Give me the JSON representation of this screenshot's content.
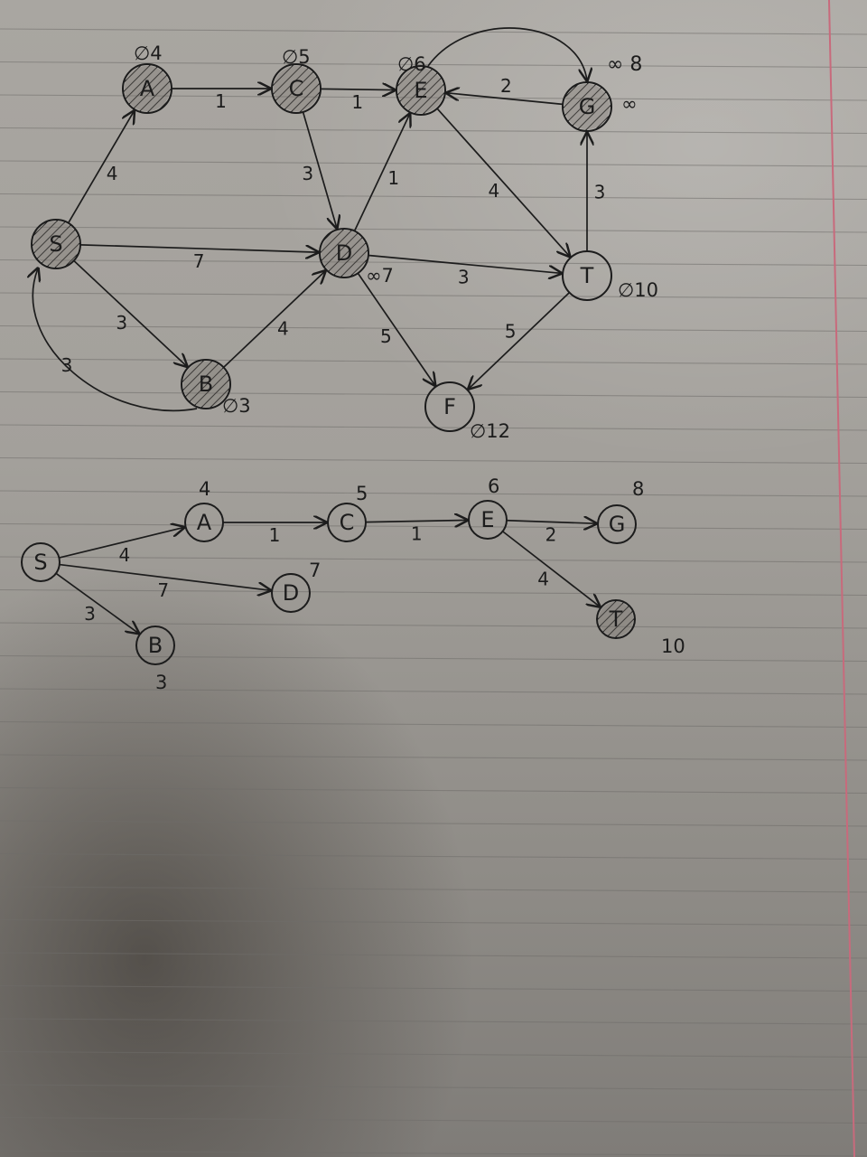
{
  "graph_top": {
    "nodes": [
      {
        "id": "S",
        "label": "S",
        "crossed": true,
        "annotation": ""
      },
      {
        "id": "A",
        "label": "A",
        "crossed": true,
        "annotation": "∅4"
      },
      {
        "id": "C",
        "label": "C",
        "crossed": true,
        "annotation": "∅5"
      },
      {
        "id": "E",
        "label": "E",
        "crossed": true,
        "annotation": "∅6"
      },
      {
        "id": "G",
        "label": "G",
        "crossed": true,
        "annotation": "∞"
      },
      {
        "id": "D",
        "label": "D",
        "crossed": true,
        "annotation": "∞7"
      },
      {
        "id": "T",
        "label": "T",
        "crossed": false,
        "annotation": "∅10"
      },
      {
        "id": "B",
        "label": "B",
        "crossed": true,
        "annotation": "∅3"
      },
      {
        "id": "F",
        "label": "F",
        "crossed": false,
        "annotation": "∅12"
      }
    ],
    "edges": [
      {
        "from": "S",
        "to": "A",
        "weight": "4"
      },
      {
        "from": "A",
        "to": "C",
        "weight": "1"
      },
      {
        "from": "C",
        "to": "E",
        "weight": "1"
      },
      {
        "from": "G",
        "to": "E",
        "weight": "2"
      },
      {
        "from": "E",
        "to": "G",
        "weight": ""
      },
      {
        "from": "C",
        "to": "D",
        "weight": "3"
      },
      {
        "from": "D",
        "to": "E",
        "weight": "1"
      },
      {
        "from": "E",
        "to": "T",
        "weight": "4"
      },
      {
        "from": "T",
        "to": "G",
        "weight": "3"
      },
      {
        "from": "S",
        "to": "D",
        "weight": "7"
      },
      {
        "from": "D",
        "to": "T",
        "weight": "3"
      },
      {
        "from": "S",
        "to": "B",
        "weight": "3"
      },
      {
        "from": "B",
        "to": "S",
        "weight": "3"
      },
      {
        "from": "B",
        "to": "D",
        "weight": "4"
      },
      {
        "from": "D",
        "to": "F",
        "weight": "5"
      },
      {
        "from": "T",
        "to": "F",
        "weight": "5"
      }
    ],
    "extra_marks": {
      "g_crossed_values": "∞ 8"
    }
  },
  "tree_bottom": {
    "nodes": [
      {
        "id": "S",
        "label": "S",
        "crossed": false,
        "value": ""
      },
      {
        "id": "A",
        "label": "A",
        "crossed": false,
        "value": "4"
      },
      {
        "id": "C",
        "label": "C",
        "crossed": false,
        "value": "5"
      },
      {
        "id": "E",
        "label": "E",
        "crossed": false,
        "value": "6"
      },
      {
        "id": "G",
        "label": "G",
        "crossed": false,
        "value": "8"
      },
      {
        "id": "D",
        "label": "D",
        "crossed": false,
        "value": "7"
      },
      {
        "id": "B",
        "label": "B",
        "crossed": false,
        "value": "3"
      },
      {
        "id": "T",
        "label": "T",
        "crossed": true,
        "value": "10"
      }
    ],
    "edges": [
      {
        "from": "S",
        "to": "A",
        "weight": "4"
      },
      {
        "from": "A",
        "to": "C",
        "weight": "1"
      },
      {
        "from": "C",
        "to": "E",
        "weight": "1"
      },
      {
        "from": "E",
        "to": "G",
        "weight": "2"
      },
      {
        "from": "E",
        "to": "T",
        "weight": "4"
      },
      {
        "from": "S",
        "to": "D",
        "weight": "7"
      },
      {
        "from": "S",
        "to": "B",
        "weight": "3"
      }
    ]
  },
  "colors": {
    "ink": "#1c1c1c",
    "rule": "#6f6d6a",
    "margin": "#c86a7c"
  }
}
